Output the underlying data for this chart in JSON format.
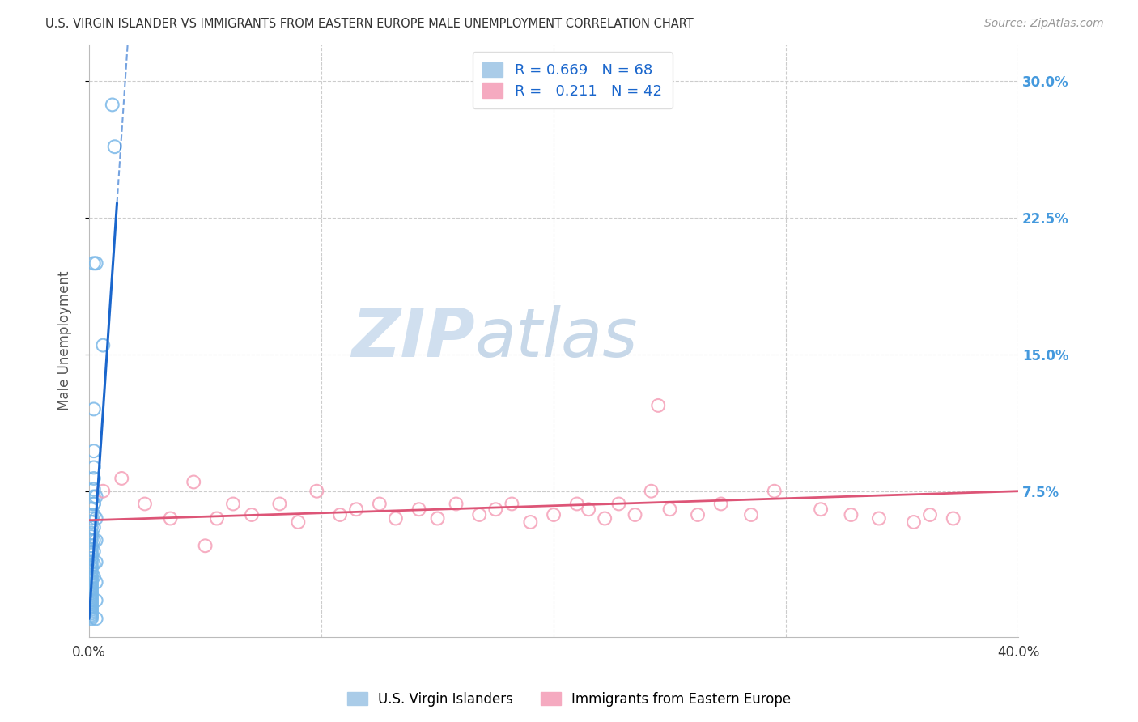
{
  "title": "U.S. VIRGIN ISLANDER VS IMMIGRANTS FROM EASTERN EUROPE MALE UNEMPLOYMENT CORRELATION CHART",
  "source": "Source: ZipAtlas.com",
  "ylabel": "Male Unemployment",
  "xlim": [
    0.0,
    0.4
  ],
  "ylim": [
    -0.005,
    0.32
  ],
  "blue_R": 0.669,
  "blue_N": 68,
  "pink_R": 0.211,
  "pink_N": 42,
  "blue_label": "U.S. Virgin Islanders",
  "pink_label": "Immigrants from Eastern Europe",
  "blue_dot_color": "#7ab8e8",
  "blue_dot_edge": "#5599cc",
  "blue_line_color": "#1a66cc",
  "pink_dot_color": "#f5a0b8",
  "pink_dot_edge": "#dd6688",
  "pink_line_color": "#dd5577",
  "background_color": "#ffffff",
  "grid_color": "#cccccc",
  "raxis_color": "#4499dd",
  "blue_dots_x": [
    0.01,
    0.011,
    0.003,
    0.006,
    0.002,
    0.002,
    0.002,
    0.002,
    0.002,
    0.002,
    0.002,
    0.002,
    0.001,
    0.001,
    0.001,
    0.001,
    0.001,
    0.001,
    0.001,
    0.001,
    0.001,
    0.001,
    0.001,
    0.001,
    0.001,
    0.001,
    0.001,
    0.001,
    0.001,
    0.001,
    0.001,
    0.001,
    0.001,
    0.001,
    0.001,
    0.001,
    0.001,
    0.001,
    0.001,
    0.001,
    0.001,
    0.001,
    0.001,
    0.001,
    0.001,
    0.001,
    0.001,
    0.001,
    0.001,
    0.001,
    0.001,
    0.001,
    0.001,
    0.001,
    0.002,
    0.002,
    0.002,
    0.002,
    0.002,
    0.002,
    0.002,
    0.003,
    0.003,
    0.003,
    0.003,
    0.003,
    0.003,
    0.003
  ],
  "blue_dots_y": [
    0.287,
    0.264,
    0.2,
    0.155,
    0.2,
    0.12,
    0.097,
    0.088,
    0.082,
    0.076,
    0.072,
    0.068,
    0.065,
    0.062,
    0.06,
    0.058,
    0.055,
    0.052,
    0.05,
    0.048,
    0.045,
    0.043,
    0.041,
    0.04,
    0.038,
    0.036,
    0.034,
    0.033,
    0.031,
    0.03,
    0.028,
    0.027,
    0.026,
    0.025,
    0.024,
    0.023,
    0.022,
    0.021,
    0.02,
    0.019,
    0.018,
    0.017,
    0.016,
    0.015,
    0.014,
    0.013,
    0.012,
    0.011,
    0.01,
    0.009,
    0.008,
    0.007,
    0.006,
    0.005,
    0.068,
    0.062,
    0.055,
    0.048,
    0.042,
    0.035,
    0.028,
    0.072,
    0.06,
    0.048,
    0.036,
    0.025,
    0.015,
    0.005
  ],
  "pink_dots_x": [
    0.006,
    0.014,
    0.024,
    0.035,
    0.045,
    0.055,
    0.062,
    0.07,
    0.082,
    0.09,
    0.098,
    0.108,
    0.115,
    0.125,
    0.132,
    0.142,
    0.15,
    0.158,
    0.168,
    0.175,
    0.182,
    0.19,
    0.2,
    0.21,
    0.215,
    0.222,
    0.228,
    0.235,
    0.242,
    0.25,
    0.262,
    0.272,
    0.285,
    0.295,
    0.315,
    0.328,
    0.34,
    0.355,
    0.362,
    0.372,
    0.05,
    0.245
  ],
  "pink_dots_y": [
    0.075,
    0.082,
    0.068,
    0.06,
    0.08,
    0.06,
    0.068,
    0.062,
    0.068,
    0.058,
    0.075,
    0.062,
    0.065,
    0.068,
    0.06,
    0.065,
    0.06,
    0.068,
    0.062,
    0.065,
    0.068,
    0.058,
    0.062,
    0.068,
    0.065,
    0.06,
    0.068,
    0.062,
    0.075,
    0.065,
    0.062,
    0.068,
    0.062,
    0.075,
    0.065,
    0.062,
    0.06,
    0.058,
    0.062,
    0.06,
    0.045,
    0.122
  ],
  "blue_line_x": [
    0.0,
    0.012,
    0.02
  ],
  "blue_line_y_start": 0.005,
  "blue_line_slope": 19.0,
  "pink_line_y_start": 0.059,
  "pink_line_slope": 0.04
}
